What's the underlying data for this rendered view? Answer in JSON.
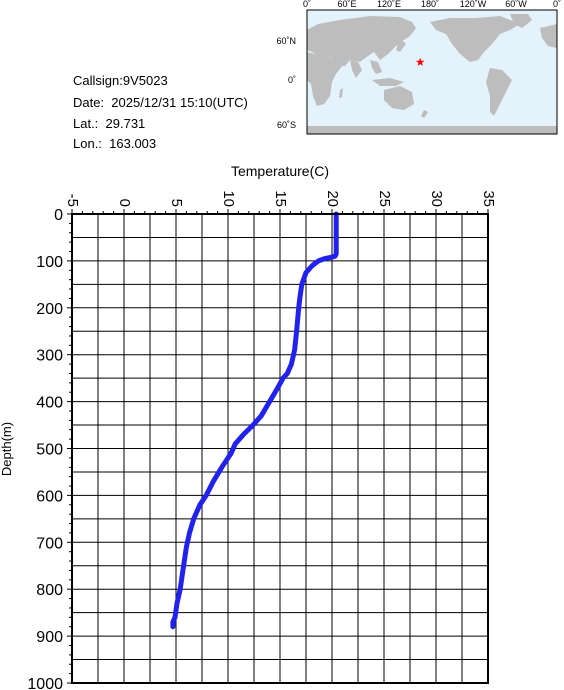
{
  "station": {
    "callsign": "Callsign:9V5023",
    "date": "Date:  2025/12/31 15:10(UTC)",
    "lat": "Lat.:  29.731",
    "lon": "Lon.:  163.003"
  },
  "map": {
    "lon_labels": [
      "0˚",
      "60˚E",
      "120˚E",
      "180˚",
      "120˚W",
      "60˚W",
      "0˚"
    ],
    "lat_labels": [
      "60˚N",
      "0˚",
      "60˚S"
    ],
    "marker": {
      "lat": 29.731,
      "lon": 163.003
    },
    "colors": {
      "ocean": "#e3f2fb",
      "land": "#bdbdbd",
      "marker": "#ff0000"
    }
  },
  "chart_data": {
    "type": "line",
    "xlabel": "Temperature(C)",
    "ylabel": "Depth(m)",
    "xlim": [
      -5,
      35
    ],
    "ylim": [
      0,
      1000
    ],
    "y_inverted": true,
    "x_ticks": [
      "-5",
      "0",
      "5",
      "10",
      "15",
      "20",
      "25",
      "30",
      "35"
    ],
    "y_ticks": [
      "0",
      "100",
      "200",
      "300",
      "400",
      "500",
      "600",
      "700",
      "800",
      "900",
      "1000"
    ],
    "grid": true,
    "line_color": "#2222ee",
    "series": [
      {
        "x": [
          20.4,
          20.4,
          20.4,
          20.3,
          19.8,
          19.3,
          18.7,
          18.1,
          17.5,
          17.1,
          16.9,
          16.8,
          16.6,
          16.4,
          16.1,
          15.7,
          15.3,
          14.8,
          14.0,
          13.2,
          12.4,
          11.5,
          10.7,
          10.3,
          9.4,
          8.6,
          7.9,
          7.3,
          6.7,
          6.3,
          6.0,
          5.8,
          5.6,
          5.4,
          5.1,
          4.9,
          4.7,
          4.7
        ],
        "y": [
          0,
          50,
          85,
          90,
          93,
          95,
          100,
          110,
          125,
          150,
          180,
          200,
          250,
          290,
          320,
          340,
          350,
          370,
          400,
          430,
          450,
          470,
          490,
          510,
          540,
          570,
          600,
          620,
          650,
          680,
          710,
          740,
          770,
          800,
          830,
          860,
          870,
          880
        ]
      }
    ]
  }
}
